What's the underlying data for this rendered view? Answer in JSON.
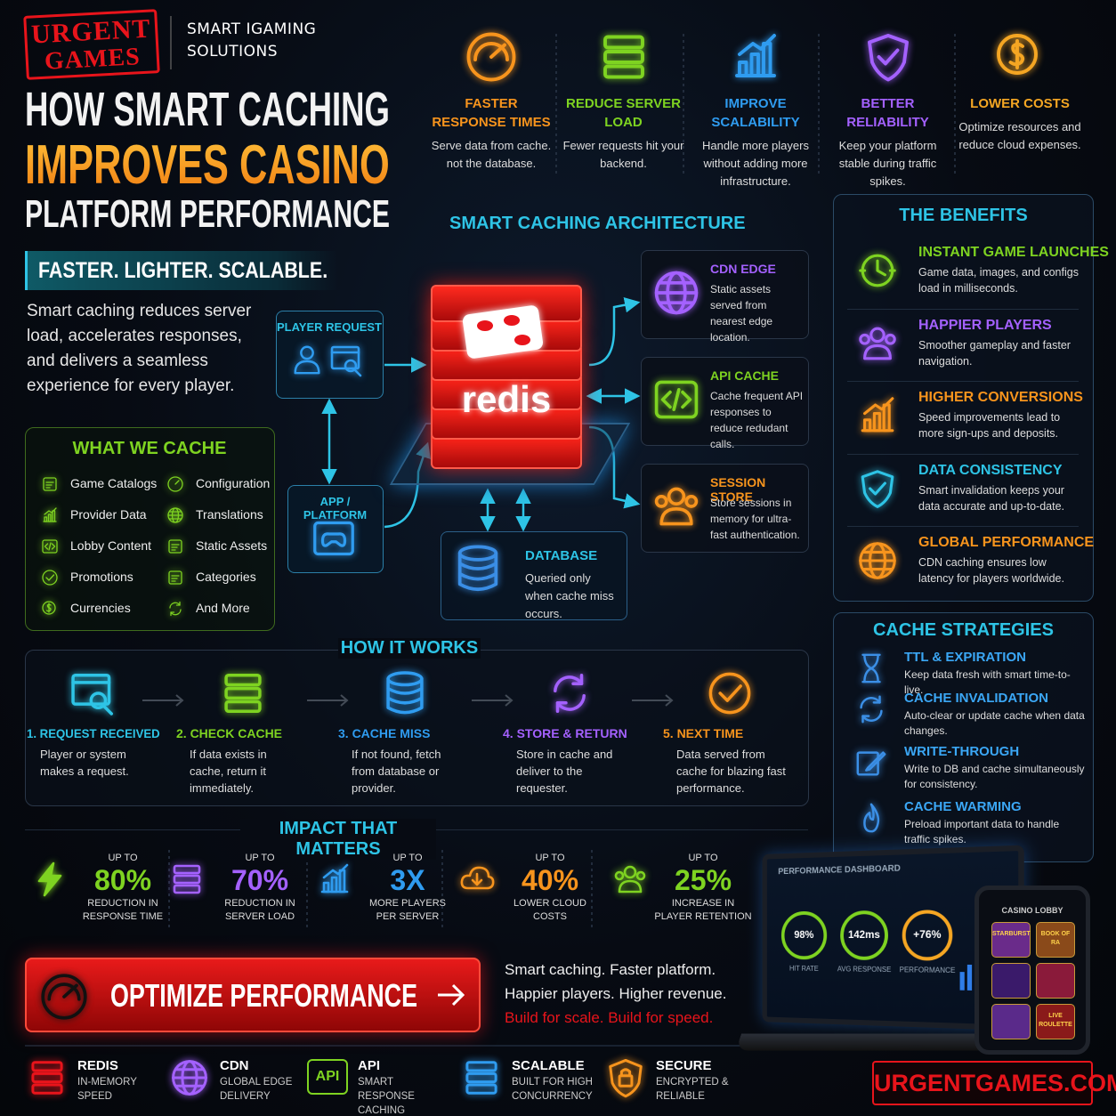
{
  "brand": {
    "line1": "URGENT",
    "line2": "GAMES",
    "tagline_1": "SMART IGAMING",
    "tagline_2": "SOLUTIONS"
  },
  "header": {
    "title": [
      "HOW SMART CACHING",
      "IMPROVES CASINO",
      "PLATFORM PERFORMANCE"
    ],
    "slogan": "FASTER. LIGHTER. SCALABLE.",
    "intro": "Smart caching reduces server load, accelerates responses, and delivers a seamless experience for every player."
  },
  "features": [
    {
      "title": "FASTER RESPONSE TIMES",
      "text": "Serve data from cache. not the database."
    },
    {
      "title": "REDUCE SERVER LOAD",
      "text": "Fewer requests hit your backend."
    },
    {
      "title": "IMPROVE SCALABILITY",
      "text": "Handle more players without adding more infrastructure."
    },
    {
      "title": "BETTER RELIABILITY",
      "text": "Keep your platform stable during traffic spikes."
    },
    {
      "title": "LOWER COSTS",
      "text": "Optimize resources and reduce cloud expenses."
    }
  ],
  "architecture": {
    "title": "SMART CACHING ARCHITECTURE",
    "player_request": "PLAYER REQUEST",
    "app_platform": "APP / PLATFORM",
    "redis": "redis",
    "database": {
      "title": "DATABASE",
      "text": "Queried only when cache miss occurs."
    },
    "nodes": [
      {
        "title": "CDN EDGE",
        "text": "Static assets served from nearest edge location."
      },
      {
        "title": "API CACHE",
        "text": "Cache frequent API responses to reduce redudant calls."
      },
      {
        "title": "SESSION STORE",
        "text": "Store sessions in memory for ultra-fast authentication."
      }
    ]
  },
  "what_we_cache": {
    "title": "WHAT WE CACHE",
    "items": [
      "Game Catalogs",
      "Configuration",
      "Provider Data",
      "Translations",
      "Lobby Content",
      "Static Assets",
      "Promotions",
      "Categories",
      "Currencies",
      "And More"
    ]
  },
  "benefits": {
    "title": "THE BENEFITS",
    "items": [
      {
        "title": "INSTANT GAME LAUNCHES",
        "text": "Game data, images, and configs load in milliseconds."
      },
      {
        "title": "HAPPIER PLAYERS",
        "text": "Smoother gameplay and faster navigation."
      },
      {
        "title": "HIGHER CONVERSIONS",
        "text": "Speed improvements lead to more sign-ups and deposits."
      },
      {
        "title": "DATA CONSISTENCY",
        "text": "Smart invalidation keeps your data accurate and up-to-date."
      },
      {
        "title": "GLOBAL PERFORMANCE",
        "text": "CDN caching ensures low latency for players worldwide."
      }
    ]
  },
  "how_it_works": {
    "title": "HOW IT WORKS",
    "steps": [
      {
        "title": "1. REQUEST RECEIVED",
        "text": "Player or system makes a request."
      },
      {
        "title": "2. CHECK CACHE",
        "text": "If data exists in cache, return it immediately."
      },
      {
        "title": "3. CACHE MISS",
        "text": "If not found, fetch from database or provider."
      },
      {
        "title": "4. STORE & RETURN",
        "text": "Store in cache and deliver to the requester."
      },
      {
        "title": "5. NEXT TIME",
        "text": "Data served from cache for blazing fast performance."
      }
    ]
  },
  "strategies": {
    "title": "CACHE STRATEGIES",
    "items": [
      {
        "title": "TTL & EXPIRATION",
        "text": "Keep data fresh with smart time-to-live."
      },
      {
        "title": "CACHE INVALIDATION",
        "text": "Auto-clear or update cache when data changes."
      },
      {
        "title": "WRITE-THROUGH",
        "text": "Write to DB and cache simultaneously for consistency."
      },
      {
        "title": "CACHE WARMING",
        "text": "Preload important data to handle traffic spikes."
      }
    ]
  },
  "impact": {
    "title": "IMPACT THAT MATTERS",
    "items": [
      {
        "prefix": "UP TO",
        "value": "80%",
        "label": "REDUCTION IN RESPONSE TIME"
      },
      {
        "prefix": "UP TO",
        "value": "70%",
        "label": "REDUCTION IN SERVER LOAD"
      },
      {
        "prefix": "UP TO",
        "value": "3X",
        "label": "MORE PLAYERS PER SERVER"
      },
      {
        "prefix": "UP TO",
        "value": "40%",
        "label": "LOWER CLOUD COSTS"
      },
      {
        "prefix": "UP TO",
        "value": "25%",
        "label": "INCREASE IN PLAYER RETENTION"
      }
    ]
  },
  "cta": {
    "button": "OPTIMIZE PERFORMANCE",
    "lines": [
      "Smart caching. Faster platform.",
      "Happier players. Higher revenue."
    ],
    "accent": "Build for scale. Build for speed."
  },
  "dashboard": {
    "title": "PERFORMANCE DASHBOARD",
    "metrics": [
      {
        "value": "98%",
        "label": "HIT RATE"
      },
      {
        "value": "142ms",
        "label": "AVG RESPONSE"
      },
      {
        "value": "+76%",
        "label": "PERFORMANCE"
      }
    ],
    "phone_title": "CASINO LOBBY",
    "games": [
      "STARBURST",
      "BOOK OF RA",
      "LIVE ROULETTE"
    ]
  },
  "footer": {
    "badges": [
      {
        "title": "REDIS",
        "sub": "IN-MEMORY SPEED"
      },
      {
        "title": "CDN",
        "sub": "GLOBAL EDGE DELIVERY"
      },
      {
        "title": "API",
        "sub": "SMART RESPONSE CACHING",
        "icon_text": "API"
      },
      {
        "title": "SCALABLE",
        "sub": "BUILT FOR HIGH CONCURRENCY"
      },
      {
        "title": "SECURE",
        "sub": "ENCRYPTED & RELIABLE"
      }
    ],
    "website": "URGENTGAMES.COM"
  }
}
